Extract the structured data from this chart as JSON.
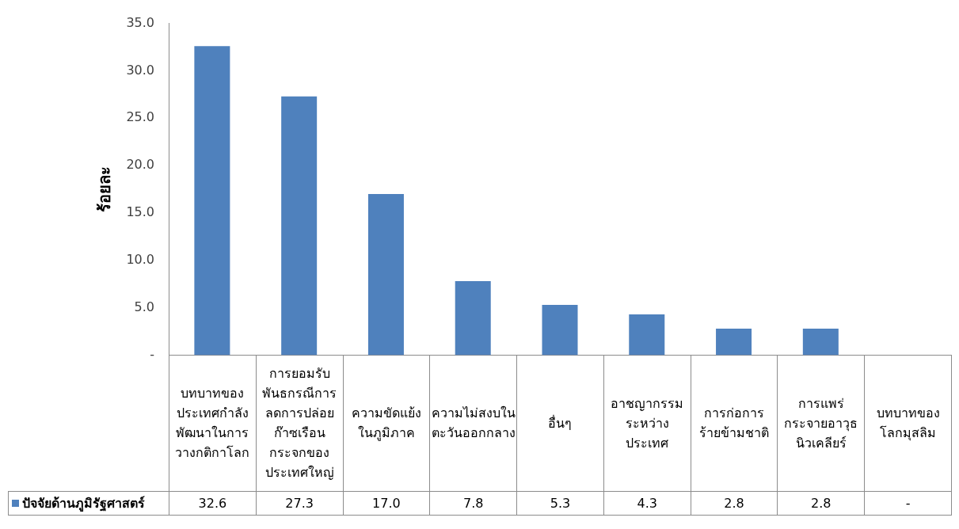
{
  "chart_data": {
    "type": "bar",
    "ylabel": "ร้อยละ",
    "categories": [
      "บทบาทของประเทศกำลังพัฒนาในการวางกติกาโลก",
      "การยอมรับพันธกรณีการลดการปล่อยก๊าซเรือนกระจกของประเทศใหญ่",
      "ความขัดแย้งในภูมิภาค",
      "ความไม่สงบในตะวันออกกลาง",
      "อื่นๆ",
      "อาชญากรรมระหว่างประเทศ",
      "การก่อการร้ายข้ามชาติ",
      "การแพร่กระจายอาวุธนิวเคลียร์",
      "บทบาทของโลกมุสลิม"
    ],
    "series": [
      {
        "name": "ปัจจัยด้านภูมิรัฐศาสตร์",
        "color": "#4f81bd",
        "values": [
          32.6,
          27.3,
          17.0,
          7.8,
          5.3,
          4.3,
          2.8,
          2.8,
          0
        ],
        "value_labels": [
          "32.6",
          "27.3",
          "17.0",
          "7.8",
          "5.3",
          "4.3",
          "2.8",
          "2.8",
          "-"
        ]
      }
    ],
    "ylim": [
      0,
      35
    ],
    "yticks": [
      {
        "value": 0,
        "label": "-"
      },
      {
        "value": 5,
        "label": "5.0"
      },
      {
        "value": 10,
        "label": "10.0"
      },
      {
        "value": 15,
        "label": "15.0"
      },
      {
        "value": 20,
        "label": "20.0"
      },
      {
        "value": 25,
        "label": "25.0"
      },
      {
        "value": 30,
        "label": "30.0"
      },
      {
        "value": 35,
        "label": "35.0"
      }
    ],
    "grid": false,
    "legend": "bottom left"
  }
}
